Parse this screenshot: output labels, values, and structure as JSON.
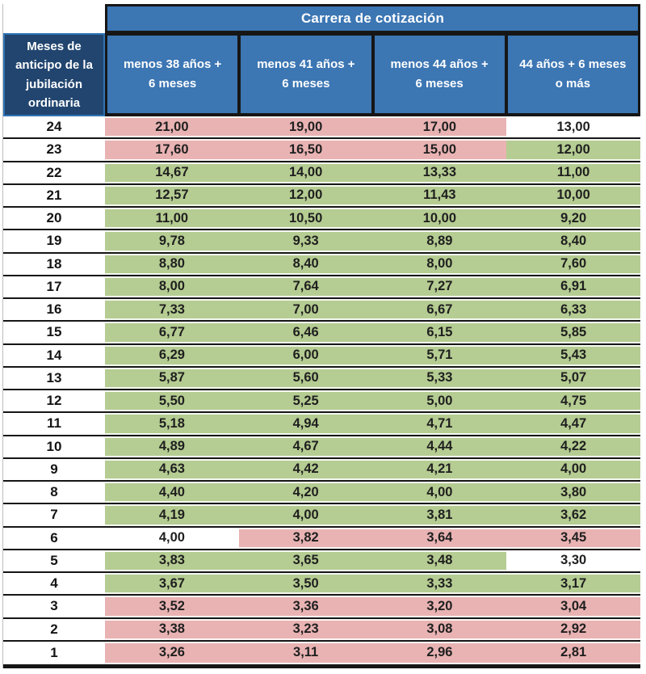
{
  "table": {
    "title": "Carrera de cotización",
    "corner_header": "Meses de anticipo de la jubilación ordinaria",
    "column_headers": [
      "menos 38 años +\n6 meses",
      "menos 41 años +\n6 meses",
      "menos 44 años +\n6 meses",
      "44 años + 6 meses\no más"
    ],
    "rows": [
      {
        "months": "24",
        "values": [
          "21,00",
          "19,00",
          "17,00",
          "13,00"
        ],
        "fills": [
          "pink",
          "pink",
          "pink",
          "white"
        ]
      },
      {
        "months": "23",
        "values": [
          "17,60",
          "16,50",
          "15,00",
          "12,00"
        ],
        "fills": [
          "pink",
          "pink",
          "pink",
          "green"
        ]
      },
      {
        "months": "22",
        "values": [
          "14,67",
          "14,00",
          "13,33",
          "11,00"
        ],
        "fills": [
          "green",
          "green",
          "green",
          "green"
        ]
      },
      {
        "months": "21",
        "values": [
          "12,57",
          "12,00",
          "11,43",
          "10,00"
        ],
        "fills": [
          "green",
          "green",
          "green",
          "green"
        ]
      },
      {
        "months": "20",
        "values": [
          "11,00",
          "10,50",
          "10,00",
          "9,20"
        ],
        "fills": [
          "green",
          "green",
          "green",
          "green"
        ]
      },
      {
        "months": "19",
        "values": [
          "9,78",
          "9,33",
          "8,89",
          "8,40"
        ],
        "fills": [
          "green",
          "green",
          "green",
          "green"
        ]
      },
      {
        "months": "18",
        "values": [
          "8,80",
          "8,40",
          "8,00",
          "7,60"
        ],
        "fills": [
          "green",
          "green",
          "green",
          "green"
        ]
      },
      {
        "months": "17",
        "values": [
          "8,00",
          "7,64",
          "7,27",
          "6,91"
        ],
        "fills": [
          "green",
          "green",
          "green",
          "green"
        ]
      },
      {
        "months": "16",
        "values": [
          "7,33",
          "7,00",
          "6,67",
          "6,33"
        ],
        "fills": [
          "green",
          "green",
          "green",
          "green"
        ]
      },
      {
        "months": "15",
        "values": [
          "6,77",
          "6,46",
          "6,15",
          "5,85"
        ],
        "fills": [
          "green",
          "green",
          "green",
          "green"
        ]
      },
      {
        "months": "14",
        "values": [
          "6,29",
          "6,00",
          "5,71",
          "5,43"
        ],
        "fills": [
          "green",
          "green",
          "green",
          "green"
        ]
      },
      {
        "months": "13",
        "values": [
          "5,87",
          "5,60",
          "5,33",
          "5,07"
        ],
        "fills": [
          "green",
          "green",
          "green",
          "green"
        ]
      },
      {
        "months": "12",
        "values": [
          "5,50",
          "5,25",
          "5,00",
          "4,75"
        ],
        "fills": [
          "green",
          "green",
          "green",
          "green"
        ]
      },
      {
        "months": "11",
        "values": [
          "5,18",
          "4,94",
          "4,71",
          "4,47"
        ],
        "fills": [
          "green",
          "green",
          "green",
          "green"
        ]
      },
      {
        "months": "10",
        "values": [
          "4,89",
          "4,67",
          "4,44",
          "4,22"
        ],
        "fills": [
          "green",
          "green",
          "green",
          "green"
        ]
      },
      {
        "months": "9",
        "values": [
          "4,63",
          "4,42",
          "4,21",
          "4,00"
        ],
        "fills": [
          "green",
          "green",
          "green",
          "green"
        ]
      },
      {
        "months": "8",
        "values": [
          "4,40",
          "4,20",
          "4,00",
          "3,80"
        ],
        "fills": [
          "green",
          "green",
          "green",
          "green"
        ]
      },
      {
        "months": "7",
        "values": [
          "4,19",
          "4,00",
          "3,81",
          "3,62"
        ],
        "fills": [
          "green",
          "green",
          "green",
          "green"
        ]
      },
      {
        "months": "6",
        "values": [
          "4,00",
          "3,82",
          "3,64",
          "3,45"
        ],
        "fills": [
          "white",
          "pink",
          "pink",
          "pink"
        ]
      },
      {
        "months": "5",
        "values": [
          "3,83",
          "3,65",
          "3,48",
          "3,30"
        ],
        "fills": [
          "green",
          "green",
          "green",
          "white"
        ]
      },
      {
        "months": "4",
        "values": [
          "3,67",
          "3,50",
          "3,33",
          "3,17"
        ],
        "fills": [
          "green",
          "green",
          "green",
          "green"
        ]
      },
      {
        "months": "3",
        "values": [
          "3,52",
          "3,36",
          "3,20",
          "3,04"
        ],
        "fills": [
          "pink",
          "pink",
          "pink",
          "pink"
        ]
      },
      {
        "months": "2",
        "values": [
          "3,38",
          "3,23",
          "3,08",
          "2,92"
        ],
        "fills": [
          "pink",
          "pink",
          "pink",
          "pink"
        ]
      },
      {
        "months": "1",
        "values": [
          "3,26",
          "3,11",
          "2,96",
          "2,81"
        ],
        "fills": [
          "pink",
          "pink",
          "pink",
          "pink"
        ]
      }
    ]
  },
  "colors": {
    "header_blue": "#3C76B3",
    "header_navy": "#21456F",
    "navy_border": "#2E74B5",
    "pink": "#E9B3B3",
    "green": "#B5CC92",
    "white": "#FFFFFF",
    "border_black": "#161616"
  }
}
